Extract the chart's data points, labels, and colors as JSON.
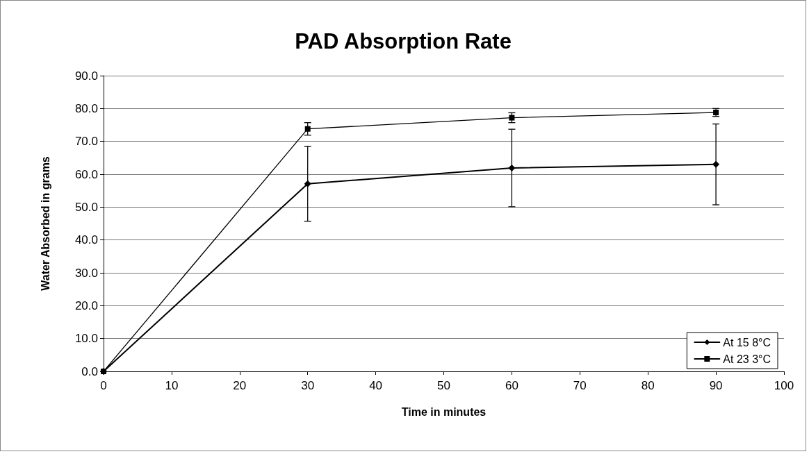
{
  "chart_data": {
    "type": "line",
    "title": "PAD Absorption Rate",
    "xlabel": "Time in minutes",
    "ylabel": "Water Absorbed in grams",
    "x": [
      0,
      30,
      60,
      90
    ],
    "series": [
      {
        "name": "At 15 8°C",
        "color": "#000000",
        "marker": "diamond",
        "values": [
          0,
          57.1,
          61.9,
          63.0
        ],
        "errors": [
          null,
          11.4,
          11.8,
          12.3
        ]
      },
      {
        "name": "At 23 3°C",
        "color": "#000000",
        "marker": "square",
        "values": [
          0,
          73.8,
          77.2,
          78.8
        ],
        "errors": [
          null,
          1.9,
          1.5,
          1.2
        ]
      }
    ],
    "xlim": [
      0,
      100
    ],
    "xticks": [
      0,
      10,
      20,
      30,
      40,
      50,
      60,
      70,
      80,
      90,
      100
    ],
    "ylim": [
      0,
      90
    ],
    "yticks": [
      {
        "value": 0,
        "label": "0.0"
      },
      {
        "value": 10,
        "label": "10.0"
      },
      {
        "value": 20,
        "label": "20.0"
      },
      {
        "value": 30,
        "label": "30.0"
      },
      {
        "value": 40,
        "label": "40.0"
      },
      {
        "value": 50,
        "label": "50.0"
      },
      {
        "value": 60,
        "label": "60.0"
      },
      {
        "value": 70,
        "label": "70.0"
      },
      {
        "value": 80,
        "label": "80.0"
      },
      {
        "value": 90,
        "label": "90.0"
      }
    ],
    "grid": "y",
    "legend": "bottom right"
  }
}
